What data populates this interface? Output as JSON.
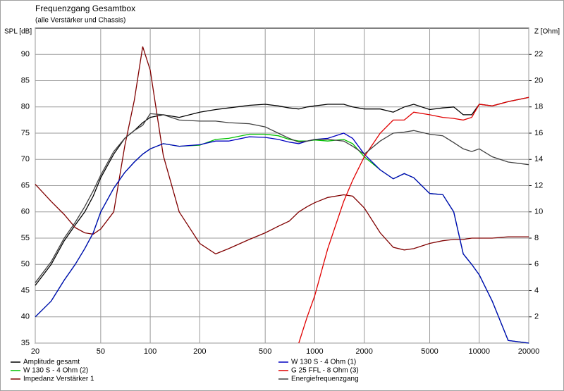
{
  "chart_data": {
    "type": "line",
    "title": "Frequenzgang Gesamtbox",
    "subtitle": "(alle Verstärker und Chassis)",
    "y_label": "SPL [dB]",
    "y2_label": "Z [Ohm]",
    "x_log": true,
    "grid": true,
    "legend_position": "bottom",
    "x": [
      20,
      25,
      30,
      35,
      40,
      45,
      50,
      60,
      70,
      80,
      90,
      100,
      120,
      150,
      200,
      250,
      300,
      400,
      500,
      600,
      700,
      800,
      900,
      1000,
      1200,
      1500,
      1700,
      2000,
      2500,
      3000,
      3500,
      4000,
      5000,
      6000,
      7000,
      8000,
      9000,
      10000,
      12000,
      15000,
      20000
    ],
    "xlim": [
      20,
      20000
    ],
    "xticks": [
      20,
      50,
      100,
      200,
      500,
      1000,
      2000,
      5000,
      10000,
      20000
    ],
    "ylim": [
      35,
      95
    ],
    "yticks": [
      35,
      40,
      45,
      50,
      55,
      60,
      65,
      70,
      75,
      80,
      85,
      90
    ],
    "y2lim": [
      0,
      24
    ],
    "y2ticks": [
      2,
      4,
      6,
      8,
      10,
      12,
      14,
      16,
      18,
      20,
      22
    ],
    "series": [
      {
        "name": "Amplitude gesamt",
        "color": "#000000",
        "values": [
          46,
          50,
          54.5,
          57.5,
          60,
          63,
          66.5,
          71,
          74,
          75.5,
          77,
          78,
          78.5,
          78,
          79,
          79.5,
          79.8,
          80.3,
          80.5,
          80.2,
          79.8,
          79.6,
          80,
          80.2,
          80.5,
          80.5,
          80,
          79.6,
          79.6,
          79,
          80,
          80.5,
          79.5,
          79.8,
          80,
          78.5,
          78.5,
          80.5,
          80.2,
          81,
          81.8
        ]
      },
      {
        "name": "W 130 S - 4 Ohm (2)",
        "color": "#00c000",
        "values": [
          40,
          43,
          47,
          50,
          53,
          56,
          60,
          64.5,
          67.5,
          69.5,
          71,
          72,
          73,
          72.5,
          72.7,
          73.8,
          74,
          74.8,
          74.8,
          74.5,
          73.8,
          73.5,
          73.5,
          73.7,
          73.5,
          73.8,
          73,
          70.5,
          68,
          66.3,
          67.3,
          66.5,
          63.5,
          63.3,
          60,
          52,
          50,
          48,
          43,
          35.5,
          35
        ]
      },
      {
        "name": "Impedanz Verstärker 1",
        "color": "#800000",
        "axis": "y2",
        "values": [
          12.1,
          10.8,
          9.8,
          8.8,
          8.4,
          8.3,
          8.7,
          10,
          15,
          18.5,
          22.6,
          20.8,
          14.3,
          10,
          7.6,
          6.8,
          7.2,
          7.9,
          8.4,
          8.9,
          9.3,
          10,
          10.4,
          10.7,
          11.1,
          11.3,
          11.2,
          10.3,
          8.4,
          7.3,
          7.1,
          7.2,
          7.6,
          7.8,
          7.9,
          7.9,
          8,
          8,
          8,
          8.1,
          8.1
        ]
      },
      {
        "name": "W 130 S - 4 Ohm (1)",
        "color": "#0000c0",
        "values": [
          40,
          43,
          47,
          50,
          53,
          56,
          60,
          64.5,
          67.5,
          69.5,
          71,
          72,
          73,
          72.5,
          72.8,
          73.5,
          73.5,
          74.3,
          74.2,
          73.8,
          73.3,
          73,
          73.5,
          73.8,
          74,
          75,
          74,
          71,
          68,
          66.3,
          67.3,
          66.5,
          63.5,
          63.3,
          60,
          52,
          50,
          48,
          43,
          35.5,
          35
        ]
      },
      {
        "name": "G 25 FFL - 8 Ohm (3)",
        "color": "#e00000",
        "values": [
          null,
          null,
          null,
          null,
          null,
          null,
          null,
          null,
          null,
          null,
          null,
          null,
          null,
          null,
          null,
          null,
          null,
          null,
          null,
          null,
          null,
          35,
          40,
          44,
          53,
          62,
          66,
          70.5,
          75,
          77.5,
          77.5,
          79,
          78.5,
          78,
          77.8,
          77.5,
          78,
          80.5,
          80.2,
          81,
          81.8
        ]
      },
      {
        "name": "Energiefrequenzgang",
        "color": "#404040",
        "values": [
          46.5,
          50.5,
          55,
          58,
          61,
          64,
          67,
          71.5,
          74,
          75.5,
          76.5,
          78.7,
          78.5,
          77.5,
          77.3,
          77.3,
          77,
          76.8,
          76.2,
          75,
          74,
          73.3,
          73.5,
          73.8,
          73.8,
          73.5,
          72.5,
          71,
          73.5,
          75,
          75.2,
          75.5,
          74.8,
          74.5,
          73.2,
          72,
          71.5,
          72,
          70.5,
          69.5,
          69
        ]
      }
    ]
  }
}
